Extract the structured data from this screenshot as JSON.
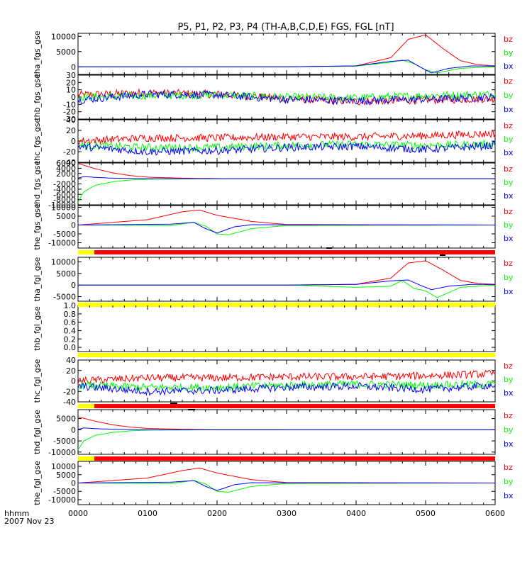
{
  "title": "P5, P1, P2, P3, P4 (TH-A,B,C,D,E) FGS, FGL [nT]",
  "time_axis": {
    "label_line1": "hhmm",
    "label_line2": "2007 Nov 23",
    "ticks": [
      "0000",
      "0100",
      "0200",
      "0300",
      "0400",
      "0500",
      "0600"
    ]
  },
  "colors": {
    "bz": "#ff0000",
    "by": "#00ff00",
    "bx": "#0000ff",
    "quality_good": "#ffff00",
    "quality_bad": "#ff0000",
    "marker": "#000000"
  },
  "chart_data": {
    "type": "line",
    "x_unit": "hhmm",
    "x_range": [
      "0000",
      "0600"
    ],
    "panels": [
      {
        "ylabel": "tha_fgs_gse",
        "ylim": [
          -2500,
          11000
        ],
        "yticks": [
          "10000",
          "5000",
          "0"
        ],
        "legend": [
          "bz",
          "by",
          "bx"
        ],
        "series": [
          {
            "name": "bz",
            "x": [
              "0000",
              "0300",
              "0400",
              "0430",
              "0445",
              "0500",
              "0515",
              "0530",
              "0545",
              "0600"
            ],
            "values": [
              0,
              0,
              300,
              3000,
              9000,
              10500,
              6000,
              2000,
              700,
              300
            ]
          },
          {
            "name": "by",
            "x": [
              "0000",
              "0300",
              "0400",
              "0430",
              "0440",
              "0450",
              "0500",
              "0510",
              "0530",
              "0600"
            ],
            "values": [
              0,
              0,
              200,
              1500,
              2200,
              1000,
              -1000,
              -2000,
              -500,
              0
            ]
          },
          {
            "name": "bx",
            "x": [
              "0000",
              "0300",
              "0400",
              "0430",
              "0445",
              "0455",
              "0505",
              "0520",
              "0540",
              "0600"
            ],
            "values": [
              0,
              0,
              300,
              1800,
              2200,
              0,
              -2000,
              -500,
              300,
              200
            ]
          }
        ]
      },
      {
        "ylabel": "thb_fgs_gse",
        "ylim": [
          -30,
          30
        ],
        "yticks": [
          "30",
          "20",
          "10",
          "0",
          "-10",
          "-20",
          "-30"
        ],
        "legend": [
          "bz",
          "by",
          "bx"
        ],
        "series": [
          {
            "name": "bz",
            "x": [
              "0000",
              "0100",
              "0200",
              "0300",
              "0400",
              "0500",
              "0600"
            ],
            "values": [
              3,
              6,
              4,
              -2,
              -6,
              -4,
              -2
            ]
          },
          {
            "name": "by",
            "x": [
              "0000",
              "0100",
              "0200",
              "0300",
              "0400",
              "0500",
              "0600"
            ],
            "values": [
              0,
              2,
              3,
              0,
              -1,
              2,
              4
            ]
          },
          {
            "name": "bx",
            "x": [
              "0000",
              "0100",
              "0200",
              "0300",
              "0400",
              "0500",
              "0600"
            ],
            "values": [
              -4,
              4,
              3,
              -3,
              -5,
              -3,
              0
            ]
          }
        ]
      },
      {
        "ylabel": "thc_fgs_gse",
        "ylim": [
          -40,
          40
        ],
        "yticks": [
          "40",
          "20",
          "0",
          "-20",
          "-40"
        ],
        "legend": [
          "bz",
          "by",
          "bx"
        ],
        "series": [
          {
            "name": "bz",
            "x": [
              "0000",
              "0100",
              "0200",
              "0300",
              "0400",
              "0500",
              "0600"
            ],
            "values": [
              0,
              6,
              6,
              8,
              8,
              10,
              14
            ]
          },
          {
            "name": "by",
            "x": [
              "0000",
              "0100",
              "0200",
              "0300",
              "0400",
              "0500",
              "0600"
            ],
            "values": [
              -8,
              -12,
              -12,
              -8,
              -6,
              -8,
              -6
            ]
          },
          {
            "name": "bx",
            "x": [
              "0000",
              "0100",
              "0200",
              "0300",
              "0400",
              "0500",
              "0600"
            ],
            "values": [
              -10,
              -20,
              -18,
              -12,
              -10,
              -16,
              -8
            ]
          }
        ]
      },
      {
        "ylabel": "thd_fgs_gse",
        "ylim": [
          -10000,
          6000
        ],
        "yticks": [
          "6000",
          "4000",
          "2000",
          "0",
          "-2000",
          "-4000",
          "-6000",
          "-8000",
          "-10000"
        ],
        "legend": [
          "bz",
          "by",
          "bx"
        ],
        "series": [
          {
            "name": "bz",
            "x": [
              "0000",
              "0015",
              "0030",
              "0045",
              "0100",
              "0130",
              "0200",
              "0300",
              "0600"
            ],
            "values": [
              5800,
              3800,
              2200,
              1200,
              600,
              200,
              50,
              0,
              0
            ]
          },
          {
            "name": "by",
            "x": [
              "0000",
              "0005",
              "0015",
              "0030",
              "0045",
              "0100",
              "0200",
              "0600"
            ],
            "values": [
              -9000,
              -5000,
              -2500,
              -1200,
              -500,
              -200,
              0,
              0
            ]
          },
          {
            "name": "bx",
            "x": [
              "0000",
              "0005",
              "0015",
              "0030",
              "0045",
              "0100",
              "0200",
              "0600"
            ],
            "values": [
              200,
              800,
              500,
              200,
              100,
              0,
              0,
              0
            ]
          }
        ]
      },
      {
        "ylabel": "the_fgs_gse",
        "ylim": [
          -13000,
          11000
        ],
        "yticks": [
          "10000",
          "5000",
          "0",
          "-5000",
          "-10000"
        ],
        "legend": [
          "bz",
          "by",
          "bx"
        ],
        "series": [
          {
            "name": "bz",
            "x": [
              "0000",
              "0100",
              "0130",
              "0145",
              "0200",
              "0230",
              "0300",
              "0600"
            ],
            "values": [
              0,
              3000,
              7500,
              8500,
              5500,
              2000,
              300,
              0
            ]
          },
          {
            "name": "by",
            "x": [
              "0000",
              "0120",
              "0140",
              "0150",
              "0200",
              "0210",
              "0230",
              "0300",
              "0600"
            ],
            "values": [
              0,
              -300,
              1500,
              -500,
              -5000,
              -5500,
              -2000,
              -300,
              0
            ]
          },
          {
            "name": "bx",
            "x": [
              "0000",
              "0120",
              "0140",
              "0150",
              "0200",
              "0215",
              "0230",
              "0300",
              "0600"
            ],
            "values": [
              0,
              500,
              1500,
              -2000,
              -4500,
              -1000,
              200,
              100,
              0
            ]
          }
        ]
      },
      {
        "ylabel": "tha_fgl_gse",
        "ylim": [
          -7000,
          12000
        ],
        "yticks": [
          "10000",
          "5000",
          "0",
          "-5000"
        ],
        "legend": [
          "bz",
          "by",
          "bx"
        ],
        "series": [
          {
            "name": "bz",
            "x": [
              "0000",
              "0300",
              "0400",
              "0430",
              "0445",
              "0500",
              "0515",
              "0530",
              "0545",
              "0600"
            ],
            "values": [
              0,
              0,
              300,
              3000,
              9500,
              10500,
              6500,
              2000,
              700,
              300
            ]
          },
          {
            "name": "by",
            "x": [
              "0000",
              "0300",
              "0400",
              "0430",
              "0440",
              "0450",
              "0500",
              "0510",
              "0530",
              "0600"
            ],
            "values": [
              0,
              0,
              -1000,
              -500,
              2000,
              -1500,
              -2500,
              -5500,
              -1000,
              0
            ]
          },
          {
            "name": "bx",
            "x": [
              "0000",
              "0300",
              "0400",
              "0430",
              "0445",
              "0455",
              "0505",
              "0520",
              "0540",
              "0600"
            ],
            "values": [
              0,
              0,
              300,
              1800,
              2200,
              0,
              -2000,
              -500,
              300,
              200
            ]
          }
        ]
      },
      {
        "ylabel": "thb_fgl_gse",
        "ylim": [
          -0.1,
          1.0
        ],
        "yticks": [
          "1.0",
          "0.8",
          "0.6",
          "0.4",
          "0.2",
          "0.0"
        ],
        "legend": [],
        "series": []
      },
      {
        "ylabel": "thc_fgl_gse",
        "ylim": [
          -40,
          40
        ],
        "yticks": [
          "40",
          "20",
          "0",
          "-20",
          "-40"
        ],
        "legend": [
          "bz",
          "by",
          "bx"
        ],
        "series": [
          {
            "name": "bz",
            "x": [
              "0000",
              "0100",
              "0200",
              "0300",
              "0400",
              "0500",
              "0600"
            ],
            "values": [
              0,
              6,
              6,
              8,
              8,
              10,
              14
            ]
          },
          {
            "name": "by",
            "x": [
              "0000",
              "0100",
              "0200",
              "0300",
              "0400",
              "0500",
              "0600"
            ],
            "values": [
              -8,
              -12,
              -12,
              -8,
              -6,
              -8,
              -6
            ]
          },
          {
            "name": "bx",
            "x": [
              "0000",
              "0100",
              "0200",
              "0300",
              "0400",
              "0500",
              "0600"
            ],
            "values": [
              -10,
              -20,
              -18,
              -12,
              -10,
              -16,
              -8
            ]
          }
        ]
      },
      {
        "ylabel": "thd_fgl_gse",
        "ylim": [
          -11000,
          9000
        ],
        "yticks": [
          "5000",
          "0",
          "-5000",
          "-10000"
        ],
        "legend": [
          "bz",
          "by",
          "bx"
        ],
        "series": [
          {
            "name": "bz",
            "x": [
              "0000",
              "0015",
              "0030",
              "0045",
              "0100",
              "0130",
              "0200",
              "0300",
              "0600"
            ],
            "values": [
              5800,
              3800,
              2200,
              1200,
              600,
              200,
              50,
              0,
              0
            ]
          },
          {
            "name": "by",
            "x": [
              "0000",
              "0005",
              "0015",
              "0030",
              "0045",
              "0100",
              "0200",
              "0600"
            ],
            "values": [
              -9000,
              -5000,
              -2500,
              -1200,
              -500,
              -200,
              0,
              0
            ]
          },
          {
            "name": "bx",
            "x": [
              "0000",
              "0005",
              "0015",
              "0030",
              "0045",
              "0100",
              "0200",
              "0600"
            ],
            "values": [
              200,
              800,
              500,
              200,
              100,
              0,
              0,
              0
            ]
          }
        ]
      },
      {
        "ylabel": "the_fgl_gse",
        "ylim": [
          -13000,
          13000
        ],
        "yticks": [
          "10000",
          "5000",
          "0",
          "-5000",
          "-10000"
        ],
        "legend": [
          "bz",
          "by",
          "bx"
        ],
        "series": [
          {
            "name": "bz",
            "x": [
              "0000",
              "0100",
              "0130",
              "0145",
              "0200",
              "0230",
              "0300",
              "0600"
            ],
            "values": [
              0,
              3000,
              7500,
              9000,
              6000,
              2000,
              300,
              0
            ]
          },
          {
            "name": "by",
            "x": [
              "0000",
              "0120",
              "0140",
              "0150",
              "0200",
              "0210",
              "0230",
              "0300",
              "0600"
            ],
            "values": [
              0,
              -300,
              1500,
              -500,
              -5000,
              -5500,
              -2000,
              -300,
              0
            ]
          },
          {
            "name": "bx",
            "x": [
              "0000",
              "0120",
              "0140",
              "0150",
              "0200",
              "0215",
              "0230",
              "0300",
              "0600"
            ],
            "values": [
              0,
              500,
              1500,
              -2000,
              -4500,
              -1000,
              200,
              100,
              0
            ]
          }
        ]
      }
    ]
  }
}
